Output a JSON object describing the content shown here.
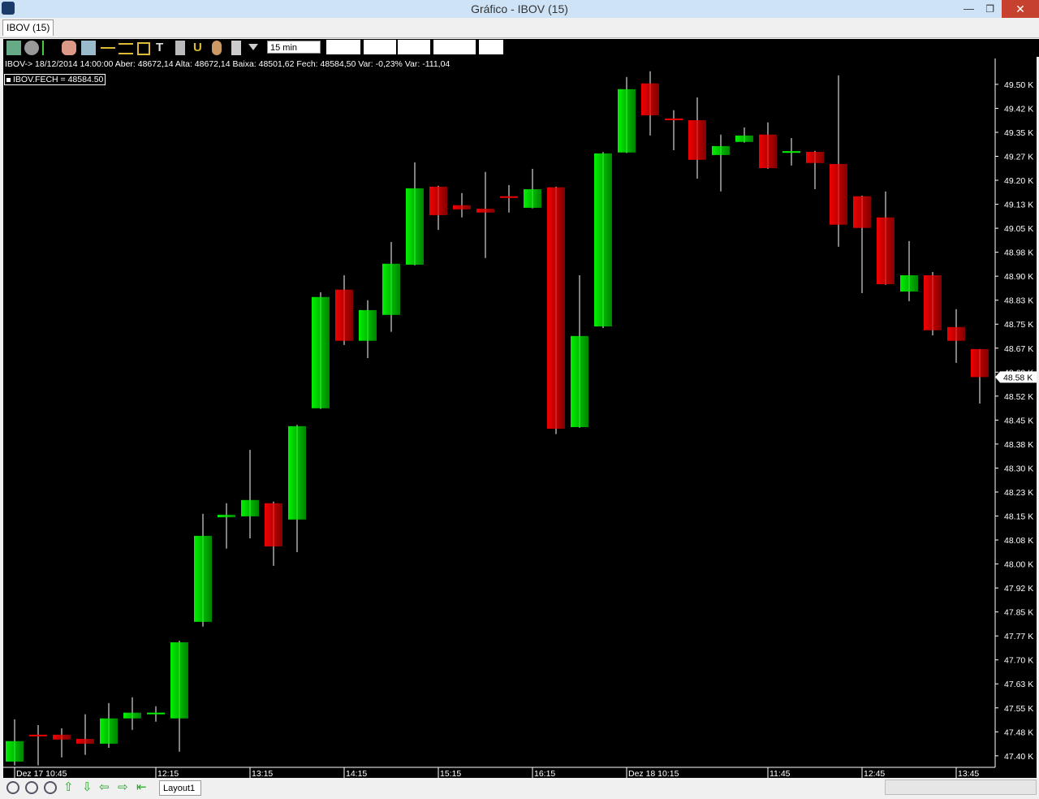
{
  "window": {
    "title": "Gráfico - IBOV (15)",
    "tab": "IBOV (15)",
    "interval": "15 min",
    "layout_tab": "Layout1"
  },
  "chart_data": {
    "type": "candlestick",
    "info": "IBOV-> 18/12/2014 14:00:00 Aber: 48672,14 Alta: 48672,14 Baixa: 48501,62 Fech: 48584,50 Var: -0,23% Var: -111,04",
    "legend": "IBOV.FECH = 48584.50",
    "last_label": "48.58 K",
    "categories": [
      "Dez 17 10:45",
      null,
      null,
      null,
      null,
      null,
      "12:15",
      null,
      null,
      null,
      "13:15",
      null,
      null,
      null,
      "14:15",
      null,
      null,
      null,
      "15:15",
      null,
      null,
      null,
      "16:15",
      null,
      null,
      null,
      "Dez 18 10:15",
      null,
      null,
      null,
      null,
      null,
      "11:45",
      null,
      null,
      null,
      "12:45",
      null,
      null,
      null,
      "13:45",
      null
    ],
    "open": [
      47382,
      47466,
      47466,
      47453,
      47438,
      47517,
      47530,
      47517,
      47819,
      48146,
      48149,
      48190,
      48139,
      48487,
      48858,
      48698,
      48779,
      48936,
      49180,
      49122,
      49111,
      49150,
      49114,
      49178,
      48428,
      48743,
      49287,
      49503,
      49393,
      49388,
      49279,
      49320,
      49343,
      49289,
      49289,
      49251,
      49150,
      49084,
      48852,
      48903,
      48741,
      48672.14
    ],
    "high": [
      47514,
      47496,
      47486,
      47530,
      47565,
      47583,
      47555,
      47760,
      48157,
      48190,
      48357,
      48195,
      48435,
      48850,
      48903,
      48825,
      49007,
      49256,
      49183,
      49160,
      49226,
      49185,
      49236,
      49180,
      48903,
      49288,
      49523,
      49541,
      49419,
      49459,
      49343,
      49365,
      49381,
      49332,
      49292,
      49528,
      49152,
      49165,
      49010,
      48913,
      48797,
      48672.14
    ],
    "low": [
      47370,
      47370,
      47395,
      47403,
      47425,
      47481,
      47507,
      47413,
      47804,
      48048,
      48080,
      47994,
      48037,
      48485,
      48685,
      48644,
      48726,
      48934,
      49045,
      49084,
      48957,
      49099,
      49112,
      48406,
      48426,
      48738,
      49285,
      49340,
      49294,
      49205,
      49165,
      49318,
      49236,
      49246,
      49172,
      48992,
      48847,
      48873,
      48822,
      48715,
      48629,
      48501.62
    ],
    "close": [
      47446,
      47464,
      47451,
      47438,
      47517,
      47535,
      47535,
      47755,
      48088,
      48154,
      48200,
      48055,
      48431,
      48835,
      48698,
      48794,
      48939,
      49175,
      49091,
      49109,
      49099,
      49148,
      49172,
      48423,
      48713,
      49284,
      49485,
      49403,
      49391,
      49264,
      49307,
      49340,
      49238,
      49291,
      49254,
      49061,
      49051,
      48875,
      48903,
      48731,
      48698,
      48584.5
    ],
    "up_color": "#00f000",
    "down_color": "#f00000",
    "ylim": [
      47364,
      49581
    ],
    "yticks": [
      {
        "value": 47400,
        "label": "47.40 K"
      },
      {
        "value": 47475,
        "label": "47.48 K"
      },
      {
        "value": 47550,
        "label": "47.55 K"
      },
      {
        "value": 47625,
        "label": "47.63 K"
      },
      {
        "value": 47700,
        "label": "47.70 K"
      },
      {
        "value": 47775,
        "label": "47.77 K"
      },
      {
        "value": 47850,
        "label": "47.85 K"
      },
      {
        "value": 47925,
        "label": "47.92 K"
      },
      {
        "value": 48000,
        "label": "48.00 K"
      },
      {
        "value": 48075,
        "label": "48.08 K"
      },
      {
        "value": 48150,
        "label": "48.15 K"
      },
      {
        "value": 48225,
        "label": "48.23 K"
      },
      {
        "value": 48300,
        "label": "48.30 K"
      },
      {
        "value": 48375,
        "label": "48.38 K"
      },
      {
        "value": 48450,
        "label": "48.45 K"
      },
      {
        "value": 48525,
        "label": "48.52 K"
      },
      {
        "value": 48600,
        "label": "48.60 K"
      },
      {
        "value": 48675,
        "label": "48.67 K"
      },
      {
        "value": 48750,
        "label": "48.75 K"
      },
      {
        "value": 48825,
        "label": "48.83 K"
      },
      {
        "value": 48900,
        "label": "48.90 K"
      },
      {
        "value": 48975,
        "label": "48.98 K"
      },
      {
        "value": 49050,
        "label": "49.05 K"
      },
      {
        "value": 49125,
        "label": "49.13 K"
      },
      {
        "value": 49200,
        "label": "49.20 K"
      },
      {
        "value": 49275,
        "label": "49.27 K"
      },
      {
        "value": 49350,
        "label": "49.35 K"
      },
      {
        "value": 49425,
        "label": "49.42 K"
      },
      {
        "value": 49500,
        "label": "49.50 K"
      }
    ]
  }
}
